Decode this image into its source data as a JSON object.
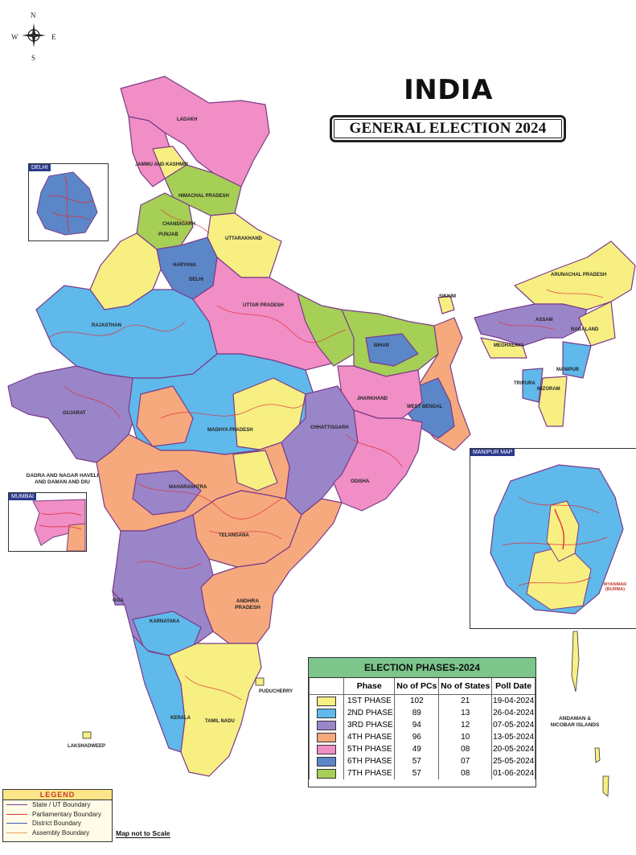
{
  "compass": {
    "n": "N",
    "s": "S",
    "e": "E",
    "w": "W"
  },
  "title": "INDIA",
  "subtitle": "GENERAL ELECTION 2024",
  "phase_colors": {
    "1": "#f7ef82",
    "2": "#5fb9ea",
    "3": "#9b85c9",
    "4": "#f6a97d",
    "5": "#f08ec5",
    "6": "#5b86c8",
    "7": "#a6cf55"
  },
  "map_labels": {
    "ladakh": "LADAKH",
    "jammu_kashmir": "JAMMU AND KASHMIR",
    "himachal": "HIMACHAL PRADESH",
    "chandigarh": "CHANDIGARH",
    "punjab": "PUNJAB",
    "uttarakhand": "UTTARAKHAND",
    "haryana": "HARYANA",
    "delhi": "DELHI",
    "rajasthan": "RAJASTHAN",
    "uttar_pradesh": "UTTAR PRADESH",
    "bihar": "BIHAR",
    "sikkim": "SIKKIM",
    "arunachal": "ARUNACHAL PRADESH",
    "assam": "ASSAM",
    "nagaland": "NAGALAND",
    "meghalaya": "MEGHALAYA",
    "manipur": "MANIPUR",
    "tripura": "TRIPURA",
    "mizoram": "MIZORAM",
    "gujarat": "GUJARAT",
    "madhya_pradesh": "MADHYA PRADESH",
    "jharkhand": "JHARKHAND",
    "west_bengal": "WEST BENGAL",
    "chhattisgarh": "CHHATTISGARH",
    "odisha": "ODISHA",
    "dnh_dd": "DADRA AND NAGAR HAVELI AND DAMAN AND DIU",
    "maharashtra": "MAHARASHTRA",
    "telangana": "TELANGANA",
    "goa": "GOA",
    "andhra": "ANDHRA PRADESH",
    "karnataka": "KARNATAKA",
    "puducherry": "PUDUCHERRY",
    "kerala": "KERALA",
    "tamil_nadu": "TAMIL NADU",
    "lakshadweep": "LAKSHADWEEP",
    "andaman": "ANDAMAN & NICOBAR ISLANDS"
  },
  "insets": {
    "delhi": "DELHI",
    "mumbai": "MUMBAI",
    "manipur": "MANIPUR MAP",
    "myanmar": "MYANMAR (BURMA)"
  },
  "phase_table": {
    "title": "ELECTION PHASES-2024",
    "headers": [
      "Phase",
      "No of PCs",
      "No of States",
      "Poll Date"
    ],
    "rows": [
      {
        "phase": "1ST PHASE",
        "pcs": "102",
        "states": "21",
        "date": "19-04-2024"
      },
      {
        "phase": "2ND PHASE",
        "pcs": "89",
        "states": "13",
        "date": "26-04-2024"
      },
      {
        "phase": "3RD PHASE",
        "pcs": "94",
        "states": "12",
        "date": "07-05-2024"
      },
      {
        "phase": "4TH PHASE",
        "pcs": "96",
        "states": "10",
        "date": "13-05-2024"
      },
      {
        "phase": "5TH PHASE",
        "pcs": "49",
        "states": "08",
        "date": "20-05-2024"
      },
      {
        "phase": "6TH PHASE",
        "pcs": "57",
        "states": "07",
        "date": "25-05-2024"
      },
      {
        "phase": "7TH PHASE",
        "pcs": "57",
        "states": "08",
        "date": "01-06-2024"
      }
    ]
  },
  "legend": {
    "title": "LEGEND",
    "items": [
      {
        "label": "State / UT Boundary",
        "color": "#7a3b8a"
      },
      {
        "label": "Parliamentary Boundary",
        "color": "#e0303a"
      },
      {
        "label": "District Boundary",
        "color": "#3a5fb0"
      },
      {
        "label": "Assembly Boundary",
        "color": "#e8a064"
      }
    ]
  },
  "scale_note": "Map not to Scale"
}
